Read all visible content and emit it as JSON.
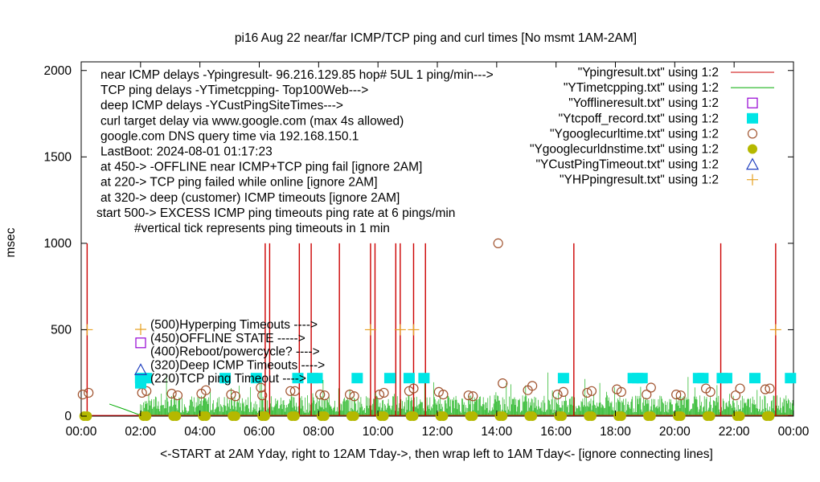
{
  "chart_data": {
    "type": "scatter",
    "title": "pi16 Aug 22  near/far ICMP/TCP ping and curl times [No msmt 1AM-2AM]",
    "xlabel": "<-START at 2AM Yday, right to 12AM Tday->, then wrap left to 1AM Tday<- [ignore connecting lines]",
    "ylabel": "msec",
    "xlim": [
      0,
      24
    ],
    "ylim": [
      0,
      2050
    ],
    "grid": false,
    "legend_position": "top-right",
    "x_ticks": [
      "00:00",
      "02:00",
      "04:00",
      "06:00",
      "08:00",
      "10:00",
      "12:00",
      "14:00",
      "16:00",
      "18:00",
      "20:00",
      "22:00",
      "00:00"
    ],
    "y_ticks": [
      "0",
      "500",
      "1000",
      "1500",
      "2000"
    ],
    "y_tick_values": [
      0,
      500,
      1000,
      1500,
      2000
    ],
    "info_lines": [
      "near ICMP delays -Ypingresult- 96.216.129.85 hop# 5UL 1 ping/min--->",
      "TCP ping delays -YTimetcpping- Top100Web--->",
      "deep ICMP delays -YCustPingSiteTimes--->",
      "curl target delay via www.google.com (max 4s allowed)",
      "google.com DNS query time via 192.168.150.1",
      "LastBoot: 2024-08-01 01:17:23",
      "at 450-> -OFFLINE near ICMP+TCP ping fail [ignore 2AM]",
      "at 220-> TCP ping failed while online [ignore 2AM]",
      "at 320-> deep (customer) ICMP timeouts [ignore 2AM]",
      "start 500-> EXCESS ICMP ping timeouts ping rate at 6 pings/min",
      "#vertical tick represents ping timeouts in 1 min"
    ],
    "key_labels": [
      "(500)Hyperping Timeouts ---->",
      "(450)OFFLINE STATE ----->",
      "(400)Reboot/powercycle? ---->",
      "(320)Deep ICMP Timeouts ---->",
      "(220)TCP ping Timeout ---->"
    ],
    "series": [
      {
        "name": "\"Ypingresult.txt\" using 1:2",
        "color": "#cc0000",
        "marker": "line",
        "spikes": [
          {
            "x": 0.2,
            "y": 1000
          },
          {
            "x": 6.2,
            "y": 1000
          },
          {
            "x": 6.35,
            "y": 1000
          },
          {
            "x": 7.35,
            "y": 1000
          },
          {
            "x": 7.75,
            "y": 1000
          },
          {
            "x": 8.7,
            "y": 1000
          },
          {
            "x": 9.75,
            "y": 1000
          },
          {
            "x": 9.9,
            "y": 1000
          },
          {
            "x": 10.6,
            "y": 1000
          },
          {
            "x": 10.75,
            "y": 1000
          },
          {
            "x": 11.2,
            "y": 1000
          },
          {
            "x": 11.6,
            "y": 1000
          },
          {
            "x": 16.6,
            "y": 1000
          },
          {
            "x": 21.55,
            "y": 1000
          },
          {
            "x": 23.4,
            "y": 1000
          }
        ]
      },
      {
        "name": "\"YTimetcpping.txt\" using 1:2",
        "color": "#00aa00",
        "marker": "line",
        "segments": [
          {
            "x": [
              0.95,
              1.45,
              2.0
            ],
            "y": [
              70,
              40,
              5
            ]
          }
        ]
      },
      {
        "name": "\"Yofflineresult.txt\" using 1:2",
        "color": "#9400d3",
        "marker": "open-square",
        "points": []
      },
      {
        "name": "\"Ytcpoff_record.txt\" using 1:2",
        "color": "#00e5e5",
        "marker": "filled-square",
        "y": 220,
        "x": [
          2.0,
          2.1,
          2.2,
          4.85,
          5.9,
          7.3,
          7.8,
          7.95,
          9.3,
          10.4,
          11.05,
          11.55,
          16.25,
          18.6,
          18.75,
          18.9,
          20.8,
          20.95,
          21.6,
          21.75,
          22.7,
          23.9
        ]
      },
      {
        "name": "\"Ygooglecurltime.txt\" using 1:2",
        "color": "#a0522d",
        "marker": "open-circle",
        "points": [
          [
            0.05,
            125
          ],
          [
            0.25,
            135
          ],
          [
            2.05,
            135
          ],
          [
            2.2,
            145
          ],
          [
            3.05,
            130
          ],
          [
            3.25,
            120
          ],
          [
            4.05,
            130
          ],
          [
            4.2,
            150
          ],
          [
            5.05,
            125
          ],
          [
            5.2,
            115
          ],
          [
            6.05,
            165
          ],
          [
            6.1,
            120
          ],
          [
            7.05,
            145
          ],
          [
            7.2,
            145
          ],
          [
            8.05,
            125
          ],
          [
            8.2,
            120
          ],
          [
            9.05,
            125
          ],
          [
            9.2,
            115
          ],
          [
            10.05,
            125
          ],
          [
            10.2,
            135
          ],
          [
            11.05,
            145
          ],
          [
            11.2,
            160
          ],
          [
            12.05,
            140
          ],
          [
            12.2,
            125
          ],
          [
            13.05,
            120
          ],
          [
            13.2,
            115
          ],
          [
            14.05,
            1000
          ],
          [
            14.2,
            190
          ],
          [
            15.05,
            150
          ],
          [
            15.2,
            175
          ],
          [
            16.05,
            125
          ],
          [
            16.25,
            140
          ],
          [
            17.05,
            135
          ],
          [
            17.2,
            145
          ],
          [
            18.05,
            155
          ],
          [
            18.2,
            140
          ],
          [
            19.05,
            125
          ],
          [
            19.2,
            165
          ],
          [
            20.05,
            125
          ],
          [
            20.2,
            120
          ],
          [
            21.05,
            160
          ],
          [
            21.2,
            140
          ],
          [
            22.05,
            120
          ],
          [
            22.2,
            160
          ],
          [
            23.05,
            155
          ],
          [
            23.2,
            160
          ]
        ]
      },
      {
        "name": "\"Ygooglecurldnstime.txt\" using 1:2",
        "color": "#b5b800",
        "marker": "filled-circle",
        "y": 0,
        "x": [
          0.1,
          0.2,
          2.1,
          2.2,
          3.1,
          3.2,
          4.1,
          4.2,
          5.1,
          5.2,
          6.1,
          6.2,
          7.1,
          7.2,
          8.1,
          8.2,
          9.1,
          9.2,
          10.1,
          10.2,
          11.1,
          11.2,
          12.1,
          12.2,
          13.1,
          13.2,
          14.1,
          14.2,
          15.1,
          15.2,
          16.1,
          16.2,
          17.1,
          17.2,
          18.1,
          18.2,
          19.1,
          19.2,
          20.1,
          20.2,
          21.1,
          21.2,
          22.1,
          22.2,
          23.1,
          23.2
        ]
      },
      {
        "name": "\"YCustPingTimeout.txt\" using 1:2",
        "color": "#1f3fbf",
        "marker": "open-triangle",
        "points": []
      },
      {
        "name": "\"YHPpingresult.txt\" using 1:2",
        "color": "#e6a020",
        "marker": "plus",
        "y": 500,
        "x": [
          0.2,
          9.75,
          10.75,
          11.2,
          23.4
        ]
      }
    ]
  }
}
